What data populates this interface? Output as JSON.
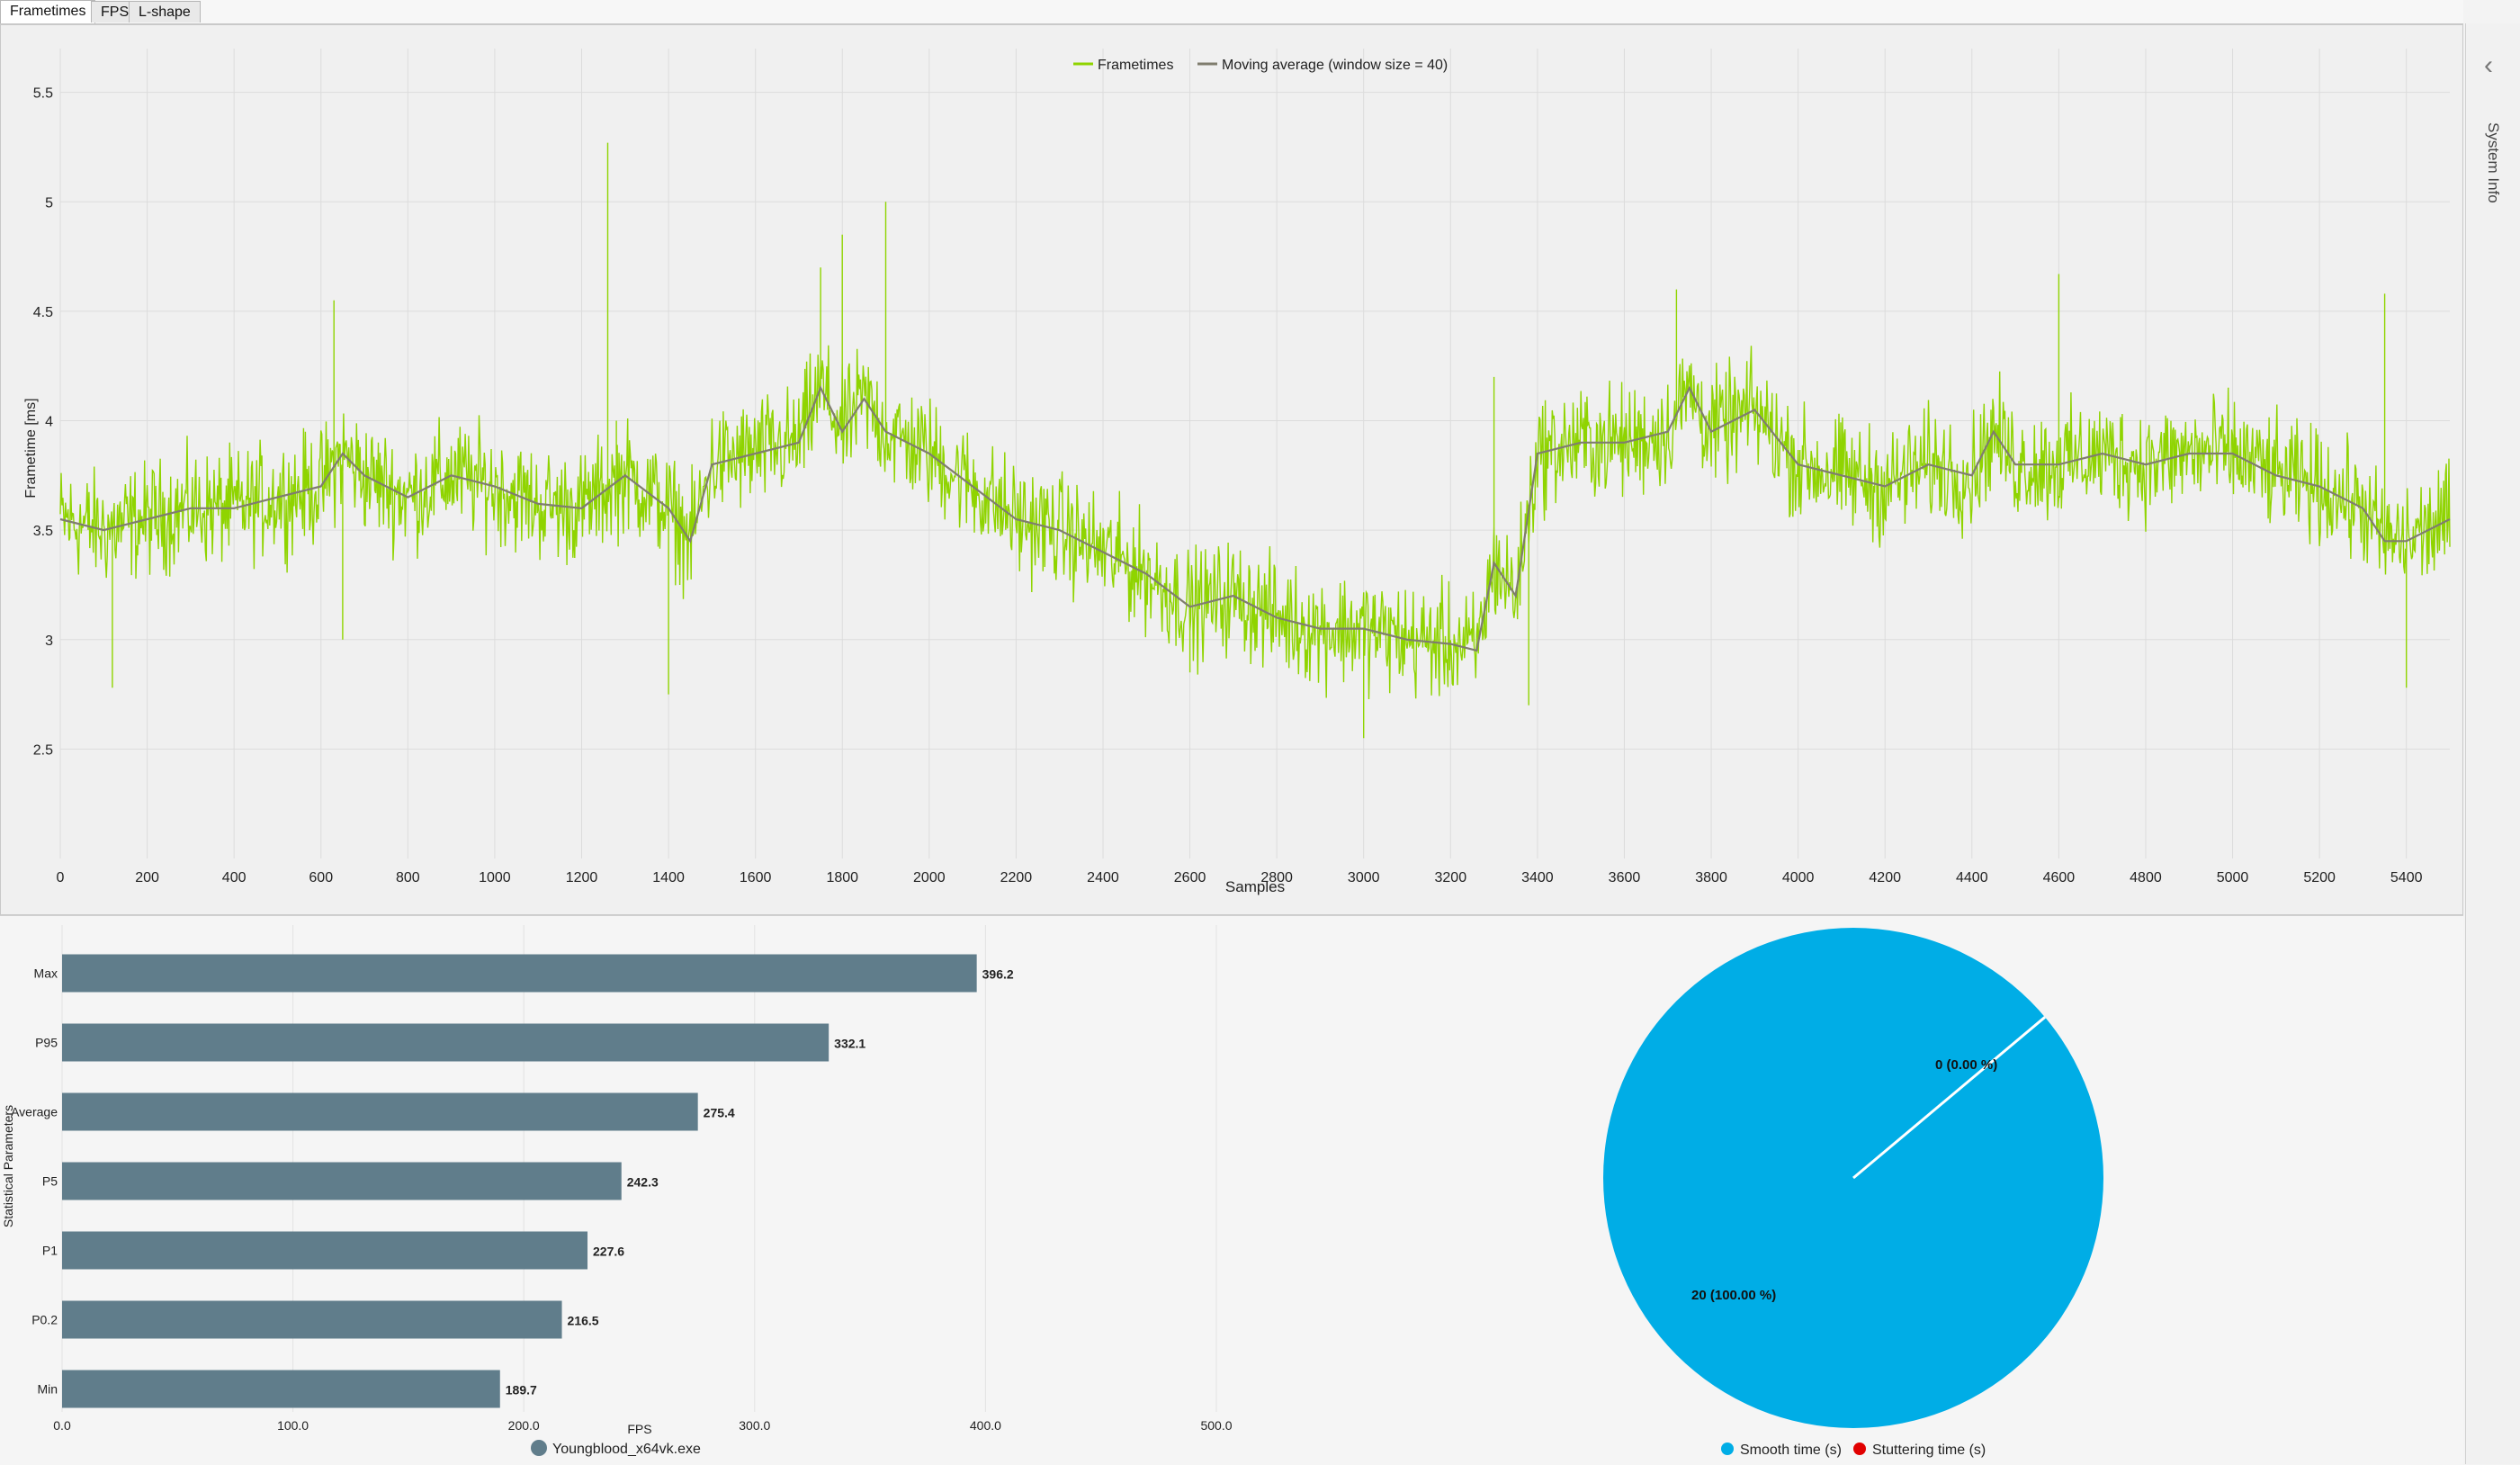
{
  "tabs": [
    {
      "label": "Frametimes",
      "active": true
    },
    {
      "label": "FPS",
      "active": false
    },
    {
      "label": "L-shape",
      "active": false
    }
  ],
  "sidebar": {
    "label": "System Info",
    "icon": "chevron-left-icon"
  },
  "colors": {
    "frametime_line": "#8fd400",
    "moving_average": "#7f7d6e",
    "bar": "#607d8b",
    "smooth": "#00ade6",
    "stutter": "#e10000"
  },
  "chart_data": [
    {
      "type": "line",
      "xlabel": "Samples",
      "ylabel": "Frametime [ms]",
      "xlim": [
        0,
        5500
      ],
      "ylim": [
        2.0,
        5.7
      ],
      "x_ticks": [
        "0",
        "200",
        "400",
        "600",
        "800",
        "1000",
        "1200",
        "1400",
        "1600",
        "1800",
        "2000",
        "2200",
        "2400",
        "2600",
        "2800",
        "3000",
        "3200",
        "3400",
        "3600",
        "3800",
        "4000",
        "4200",
        "4400",
        "4600",
        "4800",
        "5000",
        "5200",
        "5400"
      ],
      "y_ticks": [
        "2.5",
        "3",
        "3.5",
        "4",
        "4.5",
        "5",
        "5.5"
      ],
      "grid": true,
      "legend_placement": "top-center",
      "legend": [
        "Frametimes",
        "Moving average (window size = 40)"
      ],
      "series": [
        {
          "name": "Moving average (window size = 40)",
          "x": [
            0,
            100,
            200,
            300,
            400,
            500,
            600,
            650,
            700,
            800,
            900,
            1000,
            1100,
            1200,
            1300,
            1400,
            1450,
            1500,
            1600,
            1700,
            1750,
            1800,
            1850,
            1900,
            2000,
            2100,
            2200,
            2300,
            2400,
            2500,
            2600,
            2700,
            2800,
            2900,
            3000,
            3100,
            3200,
            3260,
            3300,
            3350,
            3400,
            3500,
            3600,
            3700,
            3750,
            3800,
            3900,
            4000,
            4100,
            4200,
            4300,
            4400,
            4450,
            4500,
            4600,
            4700,
            4800,
            4900,
            5000,
            5100,
            5200,
            5300,
            5350,
            5400,
            5500
          ],
          "y": [
            3.55,
            3.5,
            3.55,
            3.6,
            3.6,
            3.65,
            3.7,
            3.85,
            3.75,
            3.65,
            3.75,
            3.7,
            3.62,
            3.6,
            3.75,
            3.6,
            3.45,
            3.8,
            3.85,
            3.9,
            4.15,
            3.95,
            4.1,
            3.95,
            3.85,
            3.7,
            3.55,
            3.5,
            3.4,
            3.3,
            3.15,
            3.2,
            3.1,
            3.05,
            3.05,
            3.0,
            2.98,
            2.95,
            3.35,
            3.2,
            3.85,
            3.9,
            3.9,
            3.95,
            4.15,
            3.95,
            4.05,
            3.8,
            3.75,
            3.7,
            3.8,
            3.75,
            3.95,
            3.8,
            3.8,
            3.85,
            3.8,
            3.85,
            3.85,
            3.75,
            3.7,
            3.6,
            3.45,
            3.45,
            3.55
          ]
        },
        {
          "name": "Frametimes",
          "spread": 0.25,
          "spikes": [
            [
              120,
              2.78
            ],
            [
              630,
              4.55
            ],
            [
              650,
              3.0
            ],
            [
              1260,
              5.27
            ],
            [
              1280,
              4.0
            ],
            [
              1400,
              2.75
            ],
            [
              1750,
              4.7
            ],
            [
              1800,
              4.85
            ],
            [
              1900,
              5.0
            ],
            [
              2600,
              2.85
            ],
            [
              3000,
              2.55
            ],
            [
              3300,
              4.2
            ],
            [
              3380,
              2.7
            ],
            [
              3720,
              4.6
            ],
            [
              4600,
              4.67
            ],
            [
              5350,
              4.58
            ],
            [
              5400,
              2.78
            ]
          ]
        }
      ]
    },
    {
      "type": "bar",
      "orientation": "horizontal",
      "categories": [
        "Max",
        "P95",
        "Average",
        "P5",
        "P1",
        "P0.2",
        "Min"
      ],
      "values": [
        396.2,
        332.1,
        275.4,
        242.3,
        227.6,
        216.5,
        189.7
      ],
      "value_labels": [
        "396.2",
        "332.1",
        "275.4",
        "242.3",
        "227.6",
        "216.5",
        "189.7"
      ],
      "xlabel": "FPS",
      "ylabel": "Statistical Parameters",
      "xlim": [
        0,
        500
      ],
      "x_ticks": [
        "0.0",
        "100.0",
        "200.0",
        "300.0",
        "400.0",
        "500.0"
      ],
      "legend": [
        "Youngblood_x64vk.exe"
      ],
      "legend_placement": "bottom-center"
    },
    {
      "type": "pie",
      "slices": [
        {
          "name": "Smooth time (s)",
          "value": 20,
          "label": "20 (100.00 %)"
        },
        {
          "name": "Stuttering time (s)",
          "value": 0,
          "label": "0 (0.00 %)"
        }
      ],
      "legend": [
        "Smooth time (s)",
        "Stuttering time (s)"
      ],
      "legend_placement": "bottom-center"
    }
  ]
}
